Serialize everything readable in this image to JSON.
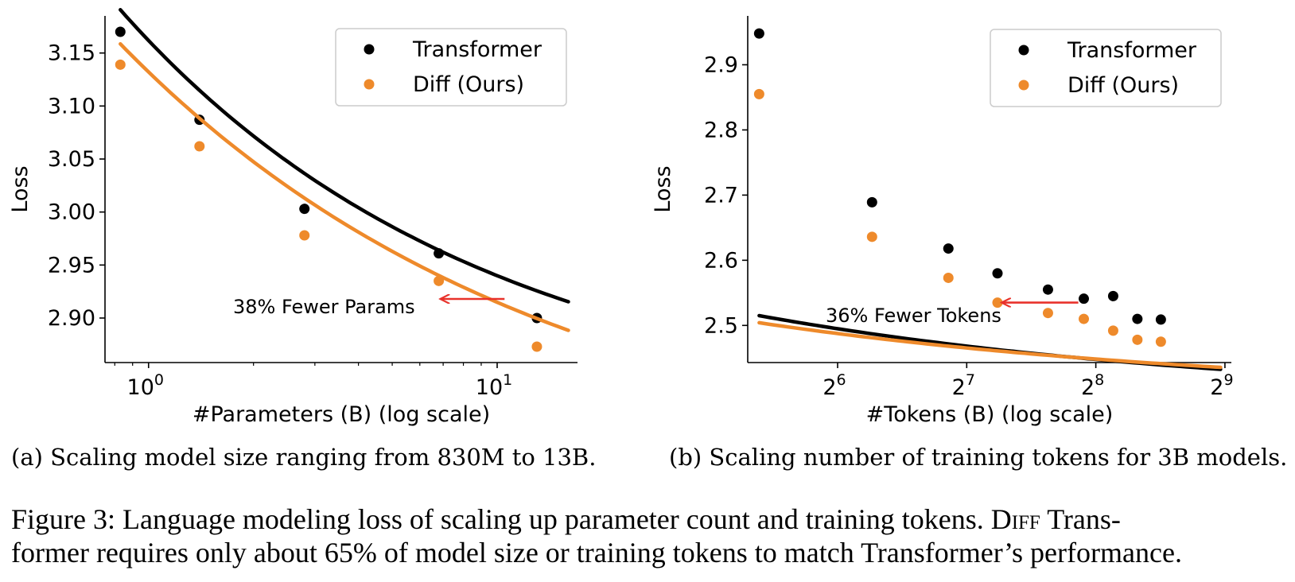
{
  "colors": {
    "transformer": "#000000",
    "diff": "#ee8a2b",
    "arrow": "#e8322b"
  },
  "chart_data": [
    {
      "type": "scatter",
      "xlabel": "#Parameters (B) (log scale)",
      "ylabel": "Loss",
      "x_scale": "log10",
      "xlim": [
        0.75,
        17.0
      ],
      "ylim": [
        2.858,
        3.185
      ],
      "xticks": [
        {
          "value": 1,
          "base": "10",
          "exp": "0"
        },
        {
          "value": 10,
          "base": "10",
          "exp": "1"
        }
      ],
      "yticks": [
        {
          "value": 2.9,
          "label": "2.90"
        },
        {
          "value": 2.95,
          "label": "2.95"
        },
        {
          "value": 3.0,
          "label": "3.00"
        },
        {
          "value": 3.05,
          "label": "3.05"
        },
        {
          "value": 3.1,
          "label": "3.10"
        },
        {
          "value": 3.15,
          "label": "3.15"
        }
      ],
      "legend": {
        "position": "top-right"
      },
      "series": [
        {
          "name": "Transformer",
          "color_key": "transformer",
          "x": [
            0.83,
            1.4,
            2.8,
            6.8,
            13
          ],
          "y": [
            3.17,
            3.087,
            3.003,
            2.961,
            2.9
          ],
          "fit": {
            "a": 2.8014,
            "b": 0.3604,
            "c": 0.4152,
            "xmin": 0.83,
            "xmax": 16.0
          }
        },
        {
          "name": "Diff (Ours)",
          "color_key": "diff",
          "x": [
            0.83,
            1.4,
            2.8,
            6.8,
            13
          ],
          "y": [
            3.139,
            3.062,
            2.978,
            2.935,
            2.873
          ],
          "fit": {
            "a": 2.7414,
            "b": 0.3907,
            "c": 0.3526,
            "xmin": 0.83,
            "xmax": 16.0
          }
        }
      ],
      "annotation": {
        "text": "38% Fewer Params",
        "arrow_from": [
          10.5,
          2.918
        ],
        "arrow_to": [
          6.9,
          2.918
        ]
      }
    },
    {
      "type": "scatter",
      "xlabel": "#Tokens (B) (log scale)",
      "ylabel": "Loss",
      "x_scale": "log2",
      "xlim": [
        39.5,
        530
      ],
      "ylim": [
        2.443,
        2.975
      ],
      "xticks": [
        {
          "value": 64,
          "base": "2",
          "exp": "6"
        },
        {
          "value": 128,
          "base": "2",
          "exp": "7"
        },
        {
          "value": 256,
          "base": "2",
          "exp": "8"
        },
        {
          "value": 512,
          "base": "2",
          "exp": "9"
        }
      ],
      "yticks": [
        {
          "value": 2.5,
          "label": "2.5"
        },
        {
          "value": 2.6,
          "label": "2.6"
        },
        {
          "value": 2.7,
          "label": "2.7"
        },
        {
          "value": 2.8,
          "label": "2.8"
        },
        {
          "value": 2.9,
          "label": "2.9"
        }
      ],
      "legend": {
        "position": "top-right"
      },
      "series": [
        {
          "name": "Transformer",
          "color_key": "transformer",
          "x": [
            42,
            77,
            116,
            151,
            198,
            240,
            281,
            320,
            363
          ],
          "y": [
            2.948,
            2.689,
            2.618,
            2.58,
            2.555,
            2.541,
            2.545,
            2.51,
            2.509
          ],
          "fit": {
            "a": 2.3812,
            "b": 0.5668,
            "c": 0.3862,
            "xmin": 42,
            "xmax": 500
          }
        },
        {
          "name": "Diff (Ours)",
          "color_key": "diff",
          "x": [
            42,
            77,
            116,
            151,
            198,
            240,
            281,
            320,
            363
          ],
          "y": [
            2.855,
            2.636,
            2.573,
            2.535,
            2.519,
            2.51,
            2.492,
            2.478,
            2.475
          ],
          "fit": {
            "a": 2.3917,
            "b": 0.4633,
            "c": 0.3789,
            "xmin": 42,
            "xmax": 500
          }
        }
      ],
      "annotation": {
        "text": "36% Fewer Tokens",
        "arrow_from": [
          233,
          2.535
        ],
        "arrow_to": [
          155,
          2.535
        ]
      }
    }
  ],
  "captions": {
    "sub_a": "(a) Scaling model size ranging from 830M to 13B.",
    "sub_b": "(b) Scaling number of training tokens for 3B models.",
    "figure_label": "Figure 3: Language modeling loss of scaling up parameter count and training tokens.",
    "diff_word": "Diff",
    "line1_tail": "Trans-",
    "line2": "former requires only about 65% of model size or training tokens to match Transformer’s performance."
  }
}
